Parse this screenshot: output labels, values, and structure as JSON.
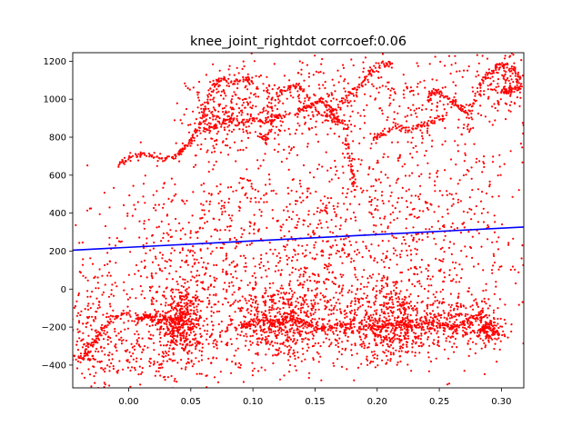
{
  "chart_data": {
    "type": "scatter",
    "title": "knee_joint_rightdot corrcoef:0.06",
    "xlabel": "",
    "ylabel": "",
    "xlim": [
      -0.045,
      0.318
    ],
    "ylim": [
      -520,
      1245
    ],
    "xticks": [
      0.0,
      0.05,
      0.1,
      0.15,
      0.2,
      0.25,
      0.3
    ],
    "xtick_labels": [
      "0.00",
      "0.05",
      "0.10",
      "0.15",
      "0.20",
      "0.25",
      "0.30"
    ],
    "yticks": [
      -400,
      -200,
      0,
      200,
      400,
      600,
      800,
      1000,
      1200
    ],
    "ytick_labels": [
      "−400",
      "−200",
      "0",
      "200",
      "400",
      "600",
      "800",
      "1000",
      "1200"
    ],
    "grid": false,
    "point_color": "#ff0000",
    "fit_color": "#0000ff",
    "fit_line": {
      "x": [
        -0.045,
        0.318
      ],
      "y": [
        205,
        327
      ]
    },
    "series": [
      {
        "clusters": [
          {
            "cx": 0.042,
            "cy": -170,
            "sx": 0.009,
            "sy": 90,
            "n": 380
          },
          {
            "cx": 0.125,
            "cy": -180,
            "sx": 0.022,
            "sy": 100,
            "n": 520
          },
          {
            "cx": 0.21,
            "cy": -190,
            "sx": 0.022,
            "sy": 90,
            "n": 560
          },
          {
            "cx": 0.265,
            "cy": -180,
            "sx": 0.015,
            "sy": 70,
            "n": 220
          },
          {
            "cx": 0.29,
            "cy": -220,
            "sx": 0.006,
            "sy": 40,
            "n": 80
          },
          {
            "cx": 0.02,
            "cy": -330,
            "sx": 0.03,
            "sy": 110,
            "n": 240
          },
          {
            "cx": 0.045,
            "cy": 30,
            "sx": 0.05,
            "sy": 260,
            "n": 520
          },
          {
            "cx": 0.15,
            "cy": 60,
            "sx": 0.06,
            "sy": 220,
            "n": 520
          },
          {
            "cx": 0.24,
            "cy": 100,
            "sx": 0.045,
            "sy": 230,
            "n": 340
          },
          {
            "cx": -0.03,
            "cy": -220,
            "sx": 0.01,
            "sy": 180,
            "n": 130
          },
          {
            "cx": 0.1,
            "cy": 950,
            "sx": 0.025,
            "sy": 120,
            "n": 260
          },
          {
            "cx": 0.07,
            "cy": 880,
            "sx": 0.012,
            "sy": 90,
            "n": 110
          },
          {
            "cx": 0.18,
            "cy": 1010,
            "sx": 0.035,
            "sy": 120,
            "n": 200
          },
          {
            "cx": 0.26,
            "cy": 980,
            "sx": 0.03,
            "sy": 150,
            "n": 170
          },
          {
            "cx": 0.305,
            "cy": 1100,
            "sx": 0.008,
            "sy": 80,
            "n": 90
          },
          {
            "cx": 0.12,
            "cy": 450,
            "sx": 0.07,
            "sy": 150,
            "n": 260
          },
          {
            "cx": 0.23,
            "cy": 550,
            "sx": 0.05,
            "sy": 160,
            "n": 170
          }
        ],
        "trails": [
          {
            "x": [
              -0.008,
              0.0,
              0.01,
              0.02,
              0.03,
              0.04,
              0.043,
              0.048,
              0.052
            ],
            "y": [
              650,
              690,
              710,
              700,
              690,
              710,
              730,
              770,
              800
            ]
          },
          {
            "x": [
              0.052,
              0.06,
              0.062,
              0.068,
              0.074,
              0.085,
              0.095,
              0.1
            ],
            "y": [
              800,
              880,
              960,
              1080,
              1100,
              1090,
              1110,
              1080
            ]
          },
          {
            "x": [
              0.062,
              0.068,
              0.08,
              0.09,
              0.1,
              0.11,
              0.118,
              0.124
            ],
            "y": [
              830,
              860,
              890,
              870,
              900,
              880,
              900,
              920
            ]
          },
          {
            "x": [
              0.105,
              0.11,
              0.115,
              0.118,
              0.125,
              0.135,
              0.14,
              0.15,
              0.16,
              0.17,
              0.178
            ],
            "y": [
              820,
              780,
              850,
              1010,
              1050,
              1070,
              1050,
              950,
              900,
              880,
              840
            ]
          },
          {
            "x": [
              0.16,
              0.17,
              0.178,
              0.19,
              0.195,
              0.205,
              0.212
            ],
            "y": [
              900,
              980,
              1040,
              1100,
              1150,
              1180,
              1200
            ]
          },
          {
            "x": [
              0.197,
              0.205,
              0.215,
              0.225,
              0.235,
              0.245,
              0.255
            ],
            "y": [
              800,
              820,
              860,
              830,
              860,
              880,
              920
            ]
          },
          {
            "x": [
              0.24,
              0.245,
              0.25,
              0.258,
              0.265,
              0.272
            ],
            "y": [
              1000,
              1050,
              1030,
              1000,
              960,
              940
            ]
          },
          {
            "x": [
              0.272,
              0.28,
              0.285,
              0.29,
              0.296,
              0.302,
              0.31,
              0.316
            ],
            "y": [
              900,
              1000,
              1100,
              1130,
              1170,
              1180,
              1150,
              1100
            ]
          },
          {
            "x": [
              0.3,
              0.305,
              0.31,
              0.316
            ],
            "y": [
              1050,
              1040,
              1060,
              1050
            ]
          },
          {
            "x": [
              0.135,
              0.14,
              0.148,
              0.155,
              0.16,
              0.165,
              0.17
            ],
            "y": [
              920,
              950,
              970,
              1000,
              960,
              920,
              880
            ]
          },
          {
            "x": [
              0.175,
              0.178,
              0.18,
              0.182
            ],
            "y": [
              800,
              700,
              600,
              520
            ]
          },
          {
            "x": [
              -0.04,
              -0.035,
              -0.03,
              -0.025,
              -0.02,
              -0.01,
              0.0
            ],
            "y": [
              -380,
              -350,
              -300,
              -260,
              -200,
              -150,
              -120
            ]
          },
          {
            "x": [
              0.005,
              0.01,
              0.015,
              0.02,
              0.025,
              0.035,
              0.042
            ],
            "y": [
              -150,
              -160,
              -140,
              -155,
              -170,
              -165,
              -150
            ]
          },
          {
            "x": [
              0.09,
              0.095,
              0.1,
              0.11,
              0.12,
              0.13,
              0.14,
              0.15,
              0.16,
              0.17,
              0.18
            ],
            "y": [
              -200,
              -190,
              -180,
              -170,
              -190,
              -160,
              -175,
              -200,
              -210,
              -190,
              -200
            ]
          },
          {
            "x": [
              0.18,
              0.19,
              0.2,
              0.21,
              0.22,
              0.23,
              0.24,
              0.25,
              0.26,
              0.27,
              0.28,
              0.288
            ],
            "y": [
              -220,
              -200,
              -210,
              -190,
              -180,
              -200,
              -170,
              -190,
              -200,
              -180,
              -150,
              -130
            ]
          },
          {
            "x": [
              0.283,
              0.286,
              0.29,
              0.294,
              0.298
            ],
            "y": [
              -230,
              -200,
              -180,
              -220,
              -240
            ]
          }
        ]
      }
    ]
  }
}
